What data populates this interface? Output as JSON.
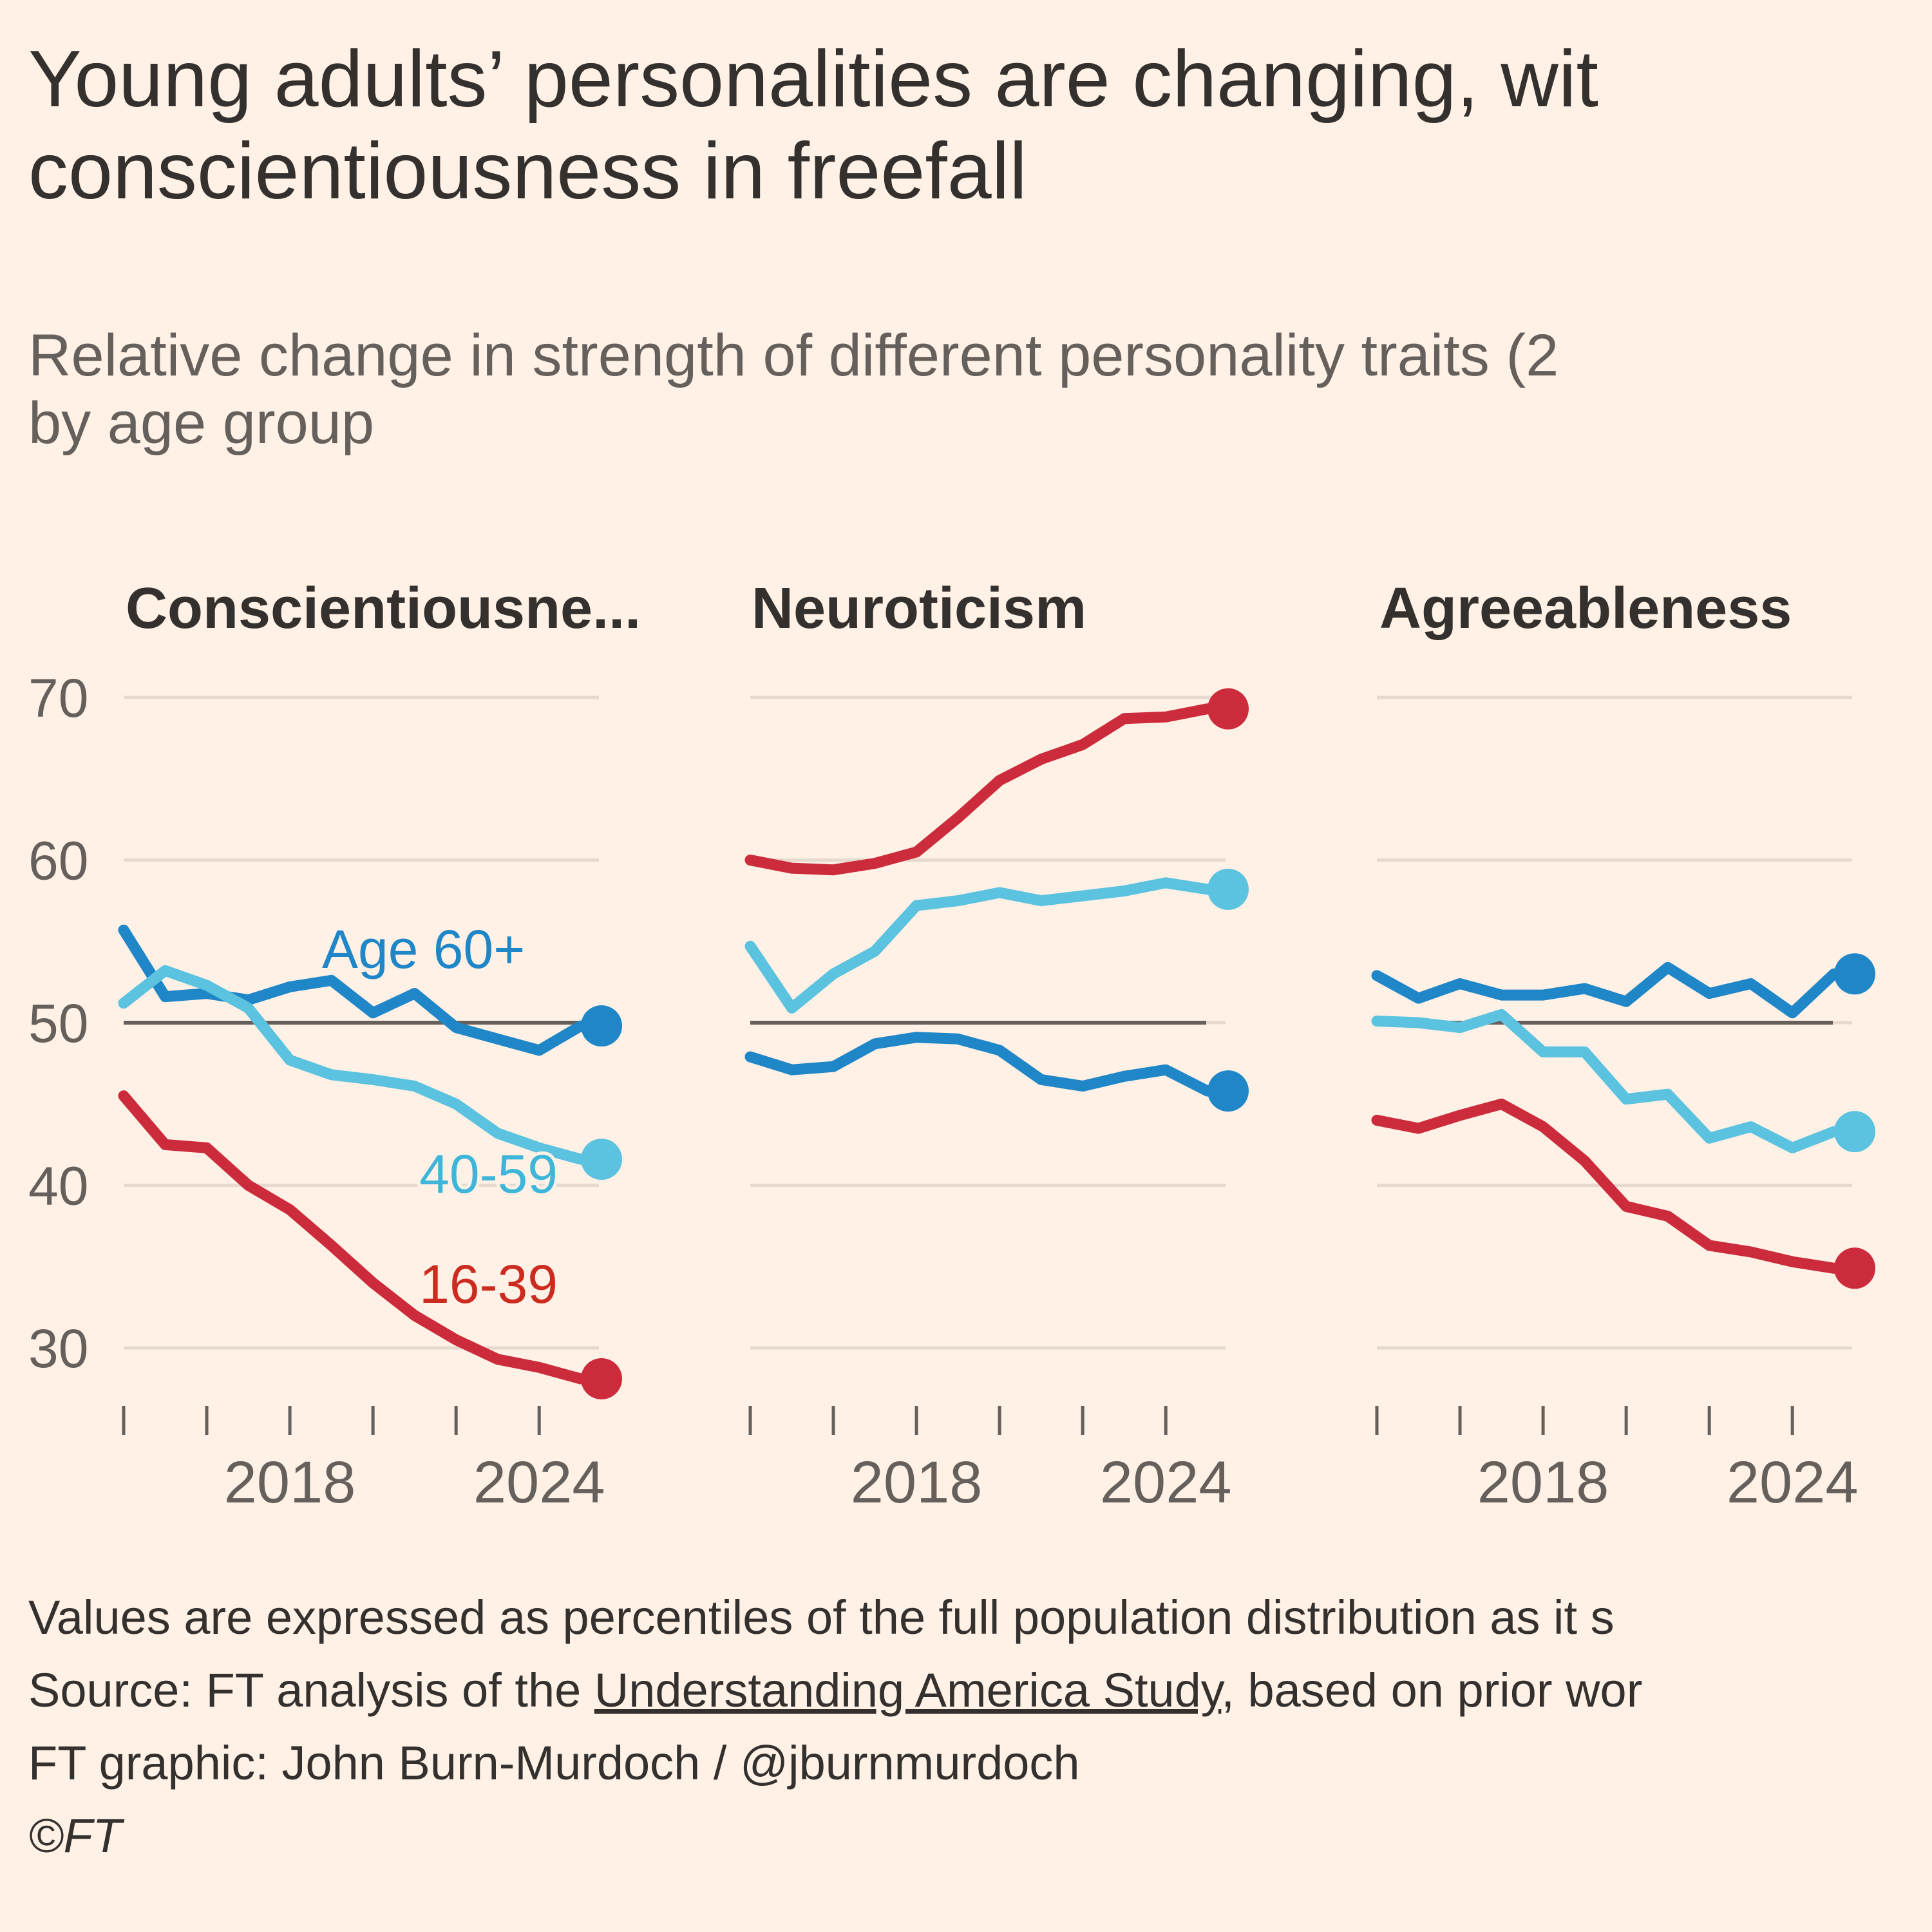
{
  "header": {
    "title_line1": "Young adults’ personalities are changing, wit",
    "title_line2": "conscientiousness in freefall",
    "subtitle_line1": "Relative change in strength of different personality traits (2",
    "subtitle_line2": "by age group"
  },
  "footer": {
    "note": "Values are expressed as percentiles of the full population distribution as it s",
    "source_prefix": "Source: FT analysis of the ",
    "source_link": "Understanding America Study",
    "source_suffix": ", based on prior wor",
    "credit": "FT graphic: John Burn-Murdoch / @jburnmurdoch",
    "copyright": "©FT"
  },
  "colors": {
    "background": "#fff1e5",
    "age_16_39": "#cc2b3c",
    "age_40_59": "#5bc2e0",
    "age_60_plus": "#1f86c8",
    "baseline": "#66605c",
    "grid": "#e6d9ce"
  },
  "chart_data": [
    {
      "type": "line",
      "title": "Conscientiousne...",
      "x": [
        2014,
        2015,
        2016,
        2017,
        2018,
        2019,
        2020,
        2021,
        2022,
        2023,
        2024,
        2025,
        2025.5
      ],
      "y_ticks": [
        70,
        60,
        50,
        40,
        30
      ],
      "x_tick_labels": [
        "2018",
        "2024"
      ],
      "x_tick_values": [
        2018,
        2024
      ],
      "reference_line": 50,
      "ylim": [
        26,
        72
      ],
      "series": [
        {
          "name": "Age 60+",
          "color_key": "age_60_plus",
          "values": [
            55.7,
            51.6,
            51.8,
            51.4,
            52.2,
            52.6,
            50.6,
            51.8,
            49.7,
            49,
            48.3,
            49.8,
            49.8
          ],
          "label": "Age 60+"
        },
        {
          "name": "40-59",
          "color_key": "age_40_59",
          "values": [
            51.2,
            53.2,
            52.3,
            50.9,
            47.7,
            46.8,
            46.5,
            46.1,
            45,
            43.2,
            42.3,
            41.6,
            41.6
          ],
          "label": "40-59"
        },
        {
          "name": "16-39",
          "color_key": "age_16_39",
          "values": [
            45.5,
            42.5,
            42.3,
            40,
            38.5,
            36.3,
            34,
            32,
            30.5,
            29.3,
            28.8,
            28.1,
            28.1
          ],
          "label": "16-39"
        }
      ]
    },
    {
      "type": "line",
      "title": "Neuroticism",
      "x": [
        2014,
        2015,
        2016,
        2017,
        2018,
        2019,
        2020,
        2021,
        2022,
        2023,
        2024,
        2025,
        2025.5
      ],
      "y_ticks": [
        70,
        60,
        50,
        40,
        30
      ],
      "x_tick_labels": [
        "2018",
        "2024"
      ],
      "x_tick_values": [
        2018,
        2024
      ],
      "reference_line": 50,
      "ylim": [
        26,
        72
      ],
      "series": [
        {
          "color_key": "age_16_39",
          "values": [
            60,
            59.5,
            59.4,
            59.8,
            60.5,
            62.6,
            64.9,
            66.2,
            67.1,
            68.7,
            68.8,
            69.3,
            69.3
          ]
        },
        {
          "color_key": "age_40_59",
          "values": [
            54.7,
            50.9,
            53,
            54.4,
            57.2,
            57.5,
            58,
            57.5,
            57.8,
            58.1,
            58.6,
            58.2,
            58.2
          ]
        },
        {
          "color_key": "age_60_plus",
          "values": [
            47.9,
            47.1,
            47.3,
            48.7,
            49.1,
            49,
            48.3,
            46.5,
            46.1,
            46.7,
            47.1,
            45.8,
            45.8
          ]
        }
      ]
    },
    {
      "type": "line",
      "title": "Agreeableness",
      "x": [
        2014,
        2015,
        2016,
        2017,
        2018,
        2019,
        2020,
        2021,
        2022,
        2023,
        2024,
        2025,
        2025.5
      ],
      "y_ticks": [
        70,
        60,
        50,
        40,
        30
      ],
      "x_tick_labels": [
        "2018",
        "2024"
      ],
      "x_tick_values": [
        2018,
        2024
      ],
      "reference_line": 50,
      "ylim": [
        26,
        72
      ],
      "series": [
        {
          "color_key": "age_60_plus",
          "values": [
            52.9,
            51.5,
            52.4,
            51.7,
            51.7,
            52.1,
            51.3,
            53.4,
            51.8,
            52.4,
            50.6,
            53,
            53
          ]
        },
        {
          "color_key": "age_40_59",
          "values": [
            50.1,
            50,
            49.7,
            50.5,
            48.2,
            48.2,
            45.3,
            45.6,
            42.9,
            43.6,
            42.3,
            43.3,
            43.3
          ]
        },
        {
          "color_key": "age_16_39",
          "values": [
            44,
            43.5,
            44.3,
            45,
            43.6,
            41.5,
            38.7,
            38.1,
            36.3,
            35.9,
            35.3,
            34.9,
            34.9
          ]
        }
      ]
    }
  ]
}
